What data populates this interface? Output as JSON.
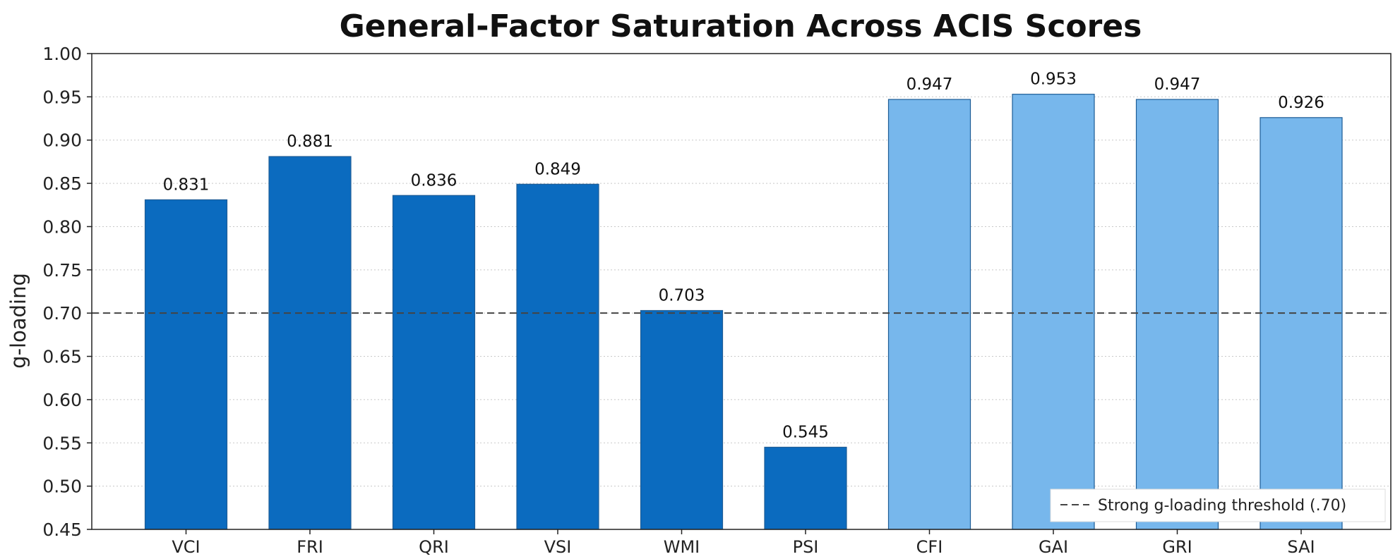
{
  "chart_data": {
    "type": "bar",
    "title": "General-Factor Saturation Across ACIS Scores",
    "xlabel": "",
    "ylabel": "g-loading",
    "ylim": [
      0.45,
      1.0
    ],
    "yticks": [
      "0.45",
      "0.50",
      "0.55",
      "0.60",
      "0.65",
      "0.70",
      "0.75",
      "0.80",
      "0.85",
      "0.90",
      "0.95",
      "1.00"
    ],
    "categories": [
      "VCI",
      "FRI",
      "QRI",
      "VSI",
      "WMI",
      "PSI",
      "CFI",
      "GAI",
      "GRI",
      "SAI"
    ],
    "values": [
      0.831,
      0.881,
      0.836,
      0.849,
      0.703,
      0.545,
      0.947,
      0.953,
      0.947,
      0.926
    ],
    "data_labels": [
      "0.831",
      "0.881",
      "0.836",
      "0.849",
      "0.703",
      "0.545",
      "0.947",
      "0.953",
      "0.947",
      "0.926"
    ],
    "bar_colors": [
      "#0b6bbf",
      "#0b6bbf",
      "#0b6bbf",
      "#0b6bbf",
      "#0b6bbf",
      "#0b6bbf",
      "#77b7ec",
      "#77b7ec",
      "#77b7ec",
      "#77b7ec"
    ],
    "bar_edge_color": "#1d5c96",
    "reference_line": {
      "value": 0.7,
      "style": "dashed",
      "color": "#444444",
      "label": "Strong g-loading threshold (.70)"
    },
    "grid": {
      "y": true,
      "style": "dotted",
      "color": "#c8c8c8"
    },
    "legend_position": "bottom-right"
  }
}
